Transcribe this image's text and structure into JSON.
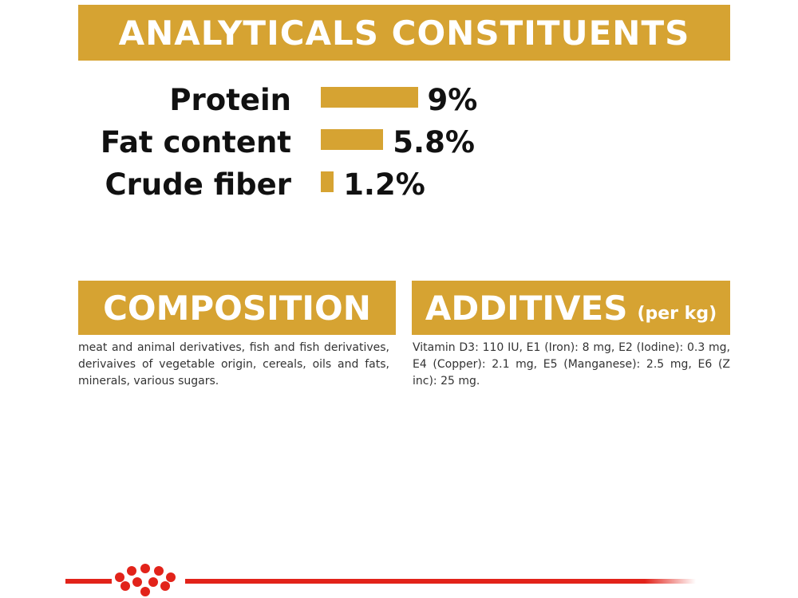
{
  "analytics": {
    "title": "ANALYTICALS CONSTITUENTS",
    "labels": [
      "Protein",
      "Fat content",
      "Crude fiber"
    ],
    "values": [
      9,
      5.8,
      1.2
    ],
    "value_labels": [
      "9%",
      "5.8%",
      "1.2%"
    ]
  },
  "composition": {
    "title": "COMPOSITION",
    "text": "meat and animal derivatives, fish and fish derivatives, derivaives of vegetable origin, cereals, oils and fats, minerals, various sugars."
  },
  "additives": {
    "title": "ADDITIVES",
    "unit": "(per kg)",
    "text": "Vitamin D3: 110 IU, E1 (Iron): 8 mg, E2 (Iodine): 0.3 mg, E4 (Copper): 2.1 mg, E5 (Manganese): 2.5 mg, E6 (Z inc): 25 mg."
  }
}
